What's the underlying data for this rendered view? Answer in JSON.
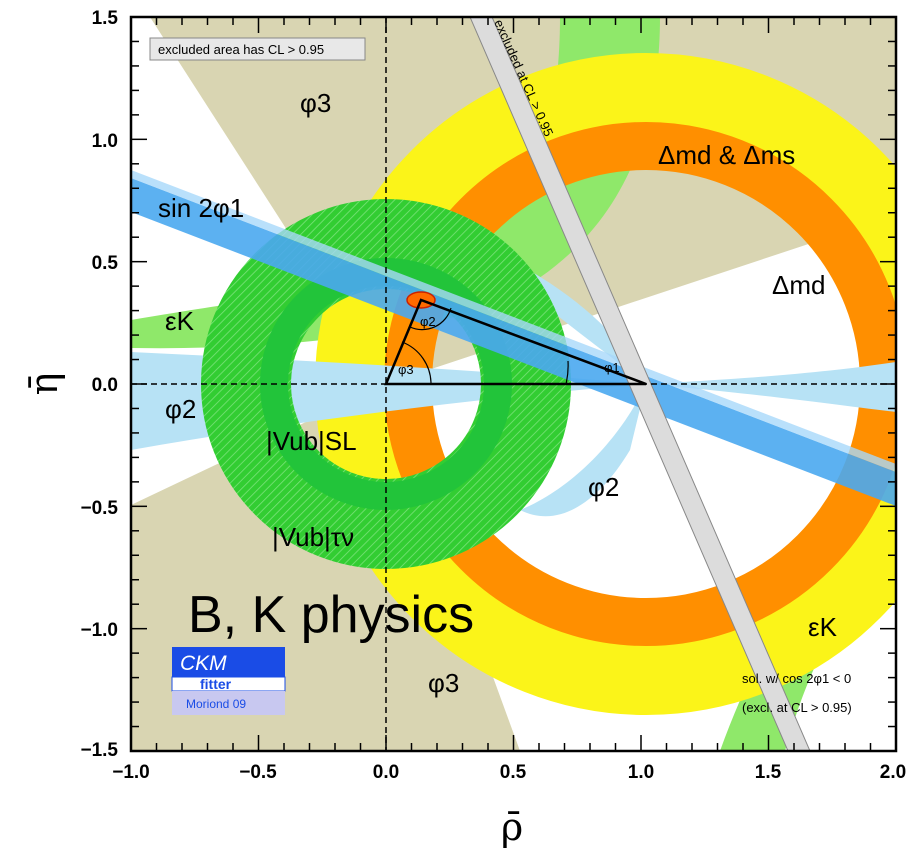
{
  "chart_data": {
    "type": "scatter",
    "xlabel": "ρ̄",
    "ylabel": "η̄",
    "xlim": [
      -1.0,
      2.0
    ],
    "ylim": [
      -1.5,
      1.5
    ],
    "x_ticks": [
      "−1.0",
      "−0.5",
      "0.0",
      "0.5",
      "1.0",
      "1.5",
      "2.0"
    ],
    "y_ticks": [
      "1.5",
      "1.0",
      "0.5",
      "0.0",
      "−0.5",
      "−1.0",
      "−1.5"
    ],
    "apex": {
      "rho": 0.14,
      "eta": 0.35
    },
    "region_labels": {
      "phi3_top": "φ3",
      "dm": "Δmd & Δms",
      "dmd": "Δmd",
      "sin2phi1": "sin 2φ1",
      "epsK_left": "εK",
      "epsK_right": "εK",
      "phi2_left": "φ2",
      "phi2_right": "φ2",
      "vub_sl": "|Vub|SL",
      "vub_taunu": "|Vub|τν",
      "phi3_bottom": "φ3",
      "excluded_band": "excluded at CL > 0.95"
    },
    "angle_labels": {
      "phi1": "φ1",
      "phi2": "φ2",
      "phi3": "φ3"
    },
    "legend_note": "excluded area has CL > 0.95",
    "solution_note": [
      "sol. w/ cos 2φ1 < 0",
      "(excl. at CL > 0.95)"
    ],
    "headline": "B, K physics",
    "logo": {
      "line1": "CKM",
      "line2": "fitter",
      "line3": "Moriond 09"
    }
  },
  "colors": {
    "phi3": "#d9d5b2",
    "dmd_yellow": "#fbf419",
    "dms_orange": "#ff8f00",
    "vub_green": "#32cd32",
    "epsK": "#8fe86a",
    "phi2_blue": "#b7e2f5",
    "sin2phi1": "#4aa8f0",
    "excluded_grey": "#dcdcdc"
  }
}
